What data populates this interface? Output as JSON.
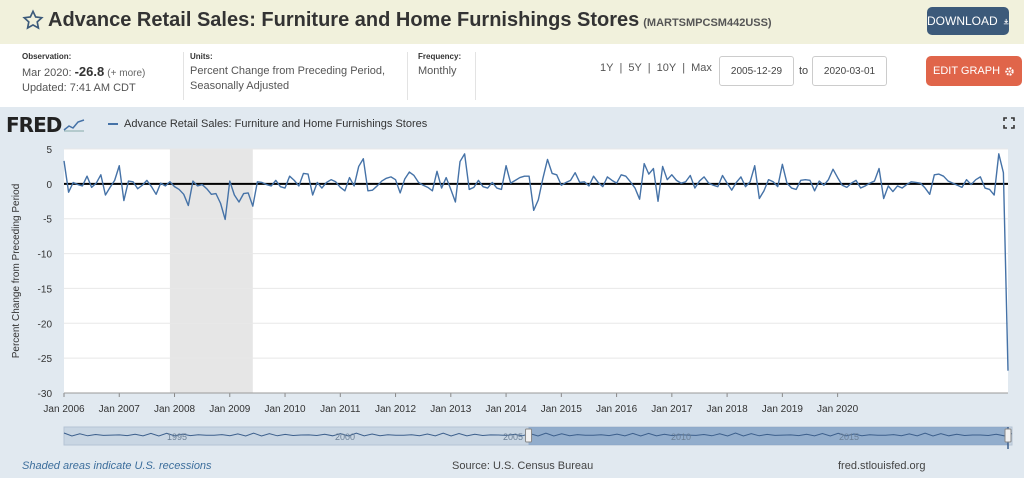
{
  "header": {
    "title": "Advance Retail Sales: Furniture and Home Furnishings Stores",
    "series_id": "(MARTSMPCSM442USS)",
    "download_label": "DOWNLOAD"
  },
  "meta": {
    "observation_label": "Observation:",
    "observation_date": "Mar 2020:",
    "observation_value": "-26.8",
    "observation_more": "(+ more)",
    "updated": "Updated: 7:41 AM CDT",
    "units_label": "Units:",
    "units_line1": "Percent Change from Preceding Period,",
    "units_line2": "Seasonally Adjusted",
    "frequency_label": "Frequency:",
    "frequency_value": "Monthly"
  },
  "controls": {
    "ranges": [
      "1Y",
      "5Y",
      "10Y",
      "Max"
    ],
    "start_date": "2005-12-29",
    "to_label": "to",
    "end_date": "2020-03-01",
    "edit_label": "EDIT GRAPH"
  },
  "graph": {
    "logo": "FRED",
    "legend": "Advance Retail Sales: Furniture and Home Furnishings Stores"
  },
  "footer": {
    "note": "Shaded areas indicate U.S. recessions",
    "source": "Source: U.S. Census Bureau",
    "site": "fred.stlouisfed.org"
  },
  "colors": {
    "line": "#4572a7",
    "recession": "#e6e6e6",
    "header_bg": "#f1f1dc",
    "download_bg": "#3c5a7a",
    "edit_bg": "#e0654a"
  },
  "chart_data": {
    "type": "line",
    "ylabel": "Percent Change from Preceding Period",
    "ylim": [
      -30,
      5
    ],
    "yticks": [
      5,
      0,
      -5,
      -10,
      -15,
      -20,
      -25,
      -30
    ],
    "x_start": "2006-01",
    "x_end": "2020-03",
    "xtick_labels": [
      "Jan 2006",
      "Jan 2007",
      "Jan 2008",
      "Jan 2009",
      "Jan 2010",
      "Jan 2011",
      "Jan 2012",
      "Jan 2013",
      "Jan 2014",
      "Jan 2015",
      "Jan 2016",
      "Jan 2017",
      "Jan 2018",
      "Jan 2019",
      "Jan 2020"
    ],
    "recession": [
      "2007-12",
      "2009-06"
    ],
    "navigator_labels": [
      "1995",
      "2000",
      "2005",
      "2010",
      "2015"
    ],
    "zero_line": true,
    "series": [
      {
        "values": [
          3.3,
          -1.2,
          0.2,
          -0.1,
          -0.3,
          1.1,
          -0.5,
          0.1,
          1.3,
          -1.6,
          -0.5,
          0.5,
          2.6,
          -2.4,
          0.4,
          0.3,
          -0.7,
          -0.2,
          0.5,
          -0.4,
          -1.5,
          0.1,
          -0.3,
          0.3,
          -0.4,
          -0.8,
          -1.5,
          -3.1,
          0.4,
          -0.3,
          -0.1,
          -0.7,
          -1.5,
          -1.4,
          -2.8,
          -5.1,
          0.4,
          -1.6,
          -2.6,
          -1.4,
          -1.3,
          -3.2,
          0.3,
          0.2,
          -0.1,
          -0.3,
          0.5,
          -0.4,
          -0.6,
          1.1,
          0.5,
          -0.3,
          1.5,
          1.4,
          -1.6,
          0.2,
          -0.6,
          0.2,
          0.6,
          0.3,
          -0.5,
          -1.0,
          0.9,
          -0.3,
          2.5,
          3.6,
          -1.0,
          -0.9,
          -0.3,
          0.4,
          0.8,
          1.0,
          0.6,
          -1.3,
          0.7,
          1.7,
          1.2,
          0.2,
          -0.2,
          -0.5,
          -1.0,
          1.8,
          -0.6,
          0.9,
          -0.8,
          -2.6,
          3.2,
          4.3,
          -0.8,
          -0.5,
          0.5,
          -0.4,
          -0.6,
          0.2,
          -0.6,
          -0.8,
          2.6,
          0.1,
          0.5,
          0.9,
          1.1,
          1.1,
          -3.8,
          -2.3,
          0.8,
          3.5,
          1.5,
          1.3,
          -0.2,
          0.2,
          0.5,
          1.6,
          0.2,
          0.3,
          -0.3,
          1.1,
          0.2,
          -0.4,
          1.0,
          0.5,
          0.1,
          1.3,
          1.1,
          0.3,
          -0.6,
          -2.2,
          2.9,
          1.4,
          2.2,
          -2.5,
          2.5,
          0.6,
          1.3,
          0.5,
          0.1,
          0.3,
          1.2,
          -0.6,
          0.4,
          1.0,
          0.1,
          -0.2,
          -0.4,
          1.2,
          0.1,
          -0.9,
          0.2,
          1.0,
          -0.4,
          0.3,
          2.6,
          -2.1,
          -1.0,
          0.6,
          0.3,
          -0.4,
          2.8,
          0.1,
          -0.6,
          -0.8,
          0.5,
          0.6,
          0.5,
          -1.0,
          0.4,
          -0.2,
          0.6,
          2.1,
          0.9,
          -0.2,
          -0.5,
          0.1,
          0.5,
          -0.6,
          -0.3,
          0.1,
          0.4,
          2.2,
          -2.1,
          -0.3,
          -1.1,
          -0.3,
          -0.6,
          -0.1,
          0.3,
          0.2,
          0.1,
          -0.6,
          -1.5,
          1.3,
          1.4,
          1.1,
          0.4,
          0.1,
          -0.2,
          -0.5,
          0.6,
          -0.1,
          0.6,
          1.0,
          -0.6,
          -0.8,
          -1.6,
          4.3,
          1.6,
          -26.8
        ]
      }
    ]
  }
}
